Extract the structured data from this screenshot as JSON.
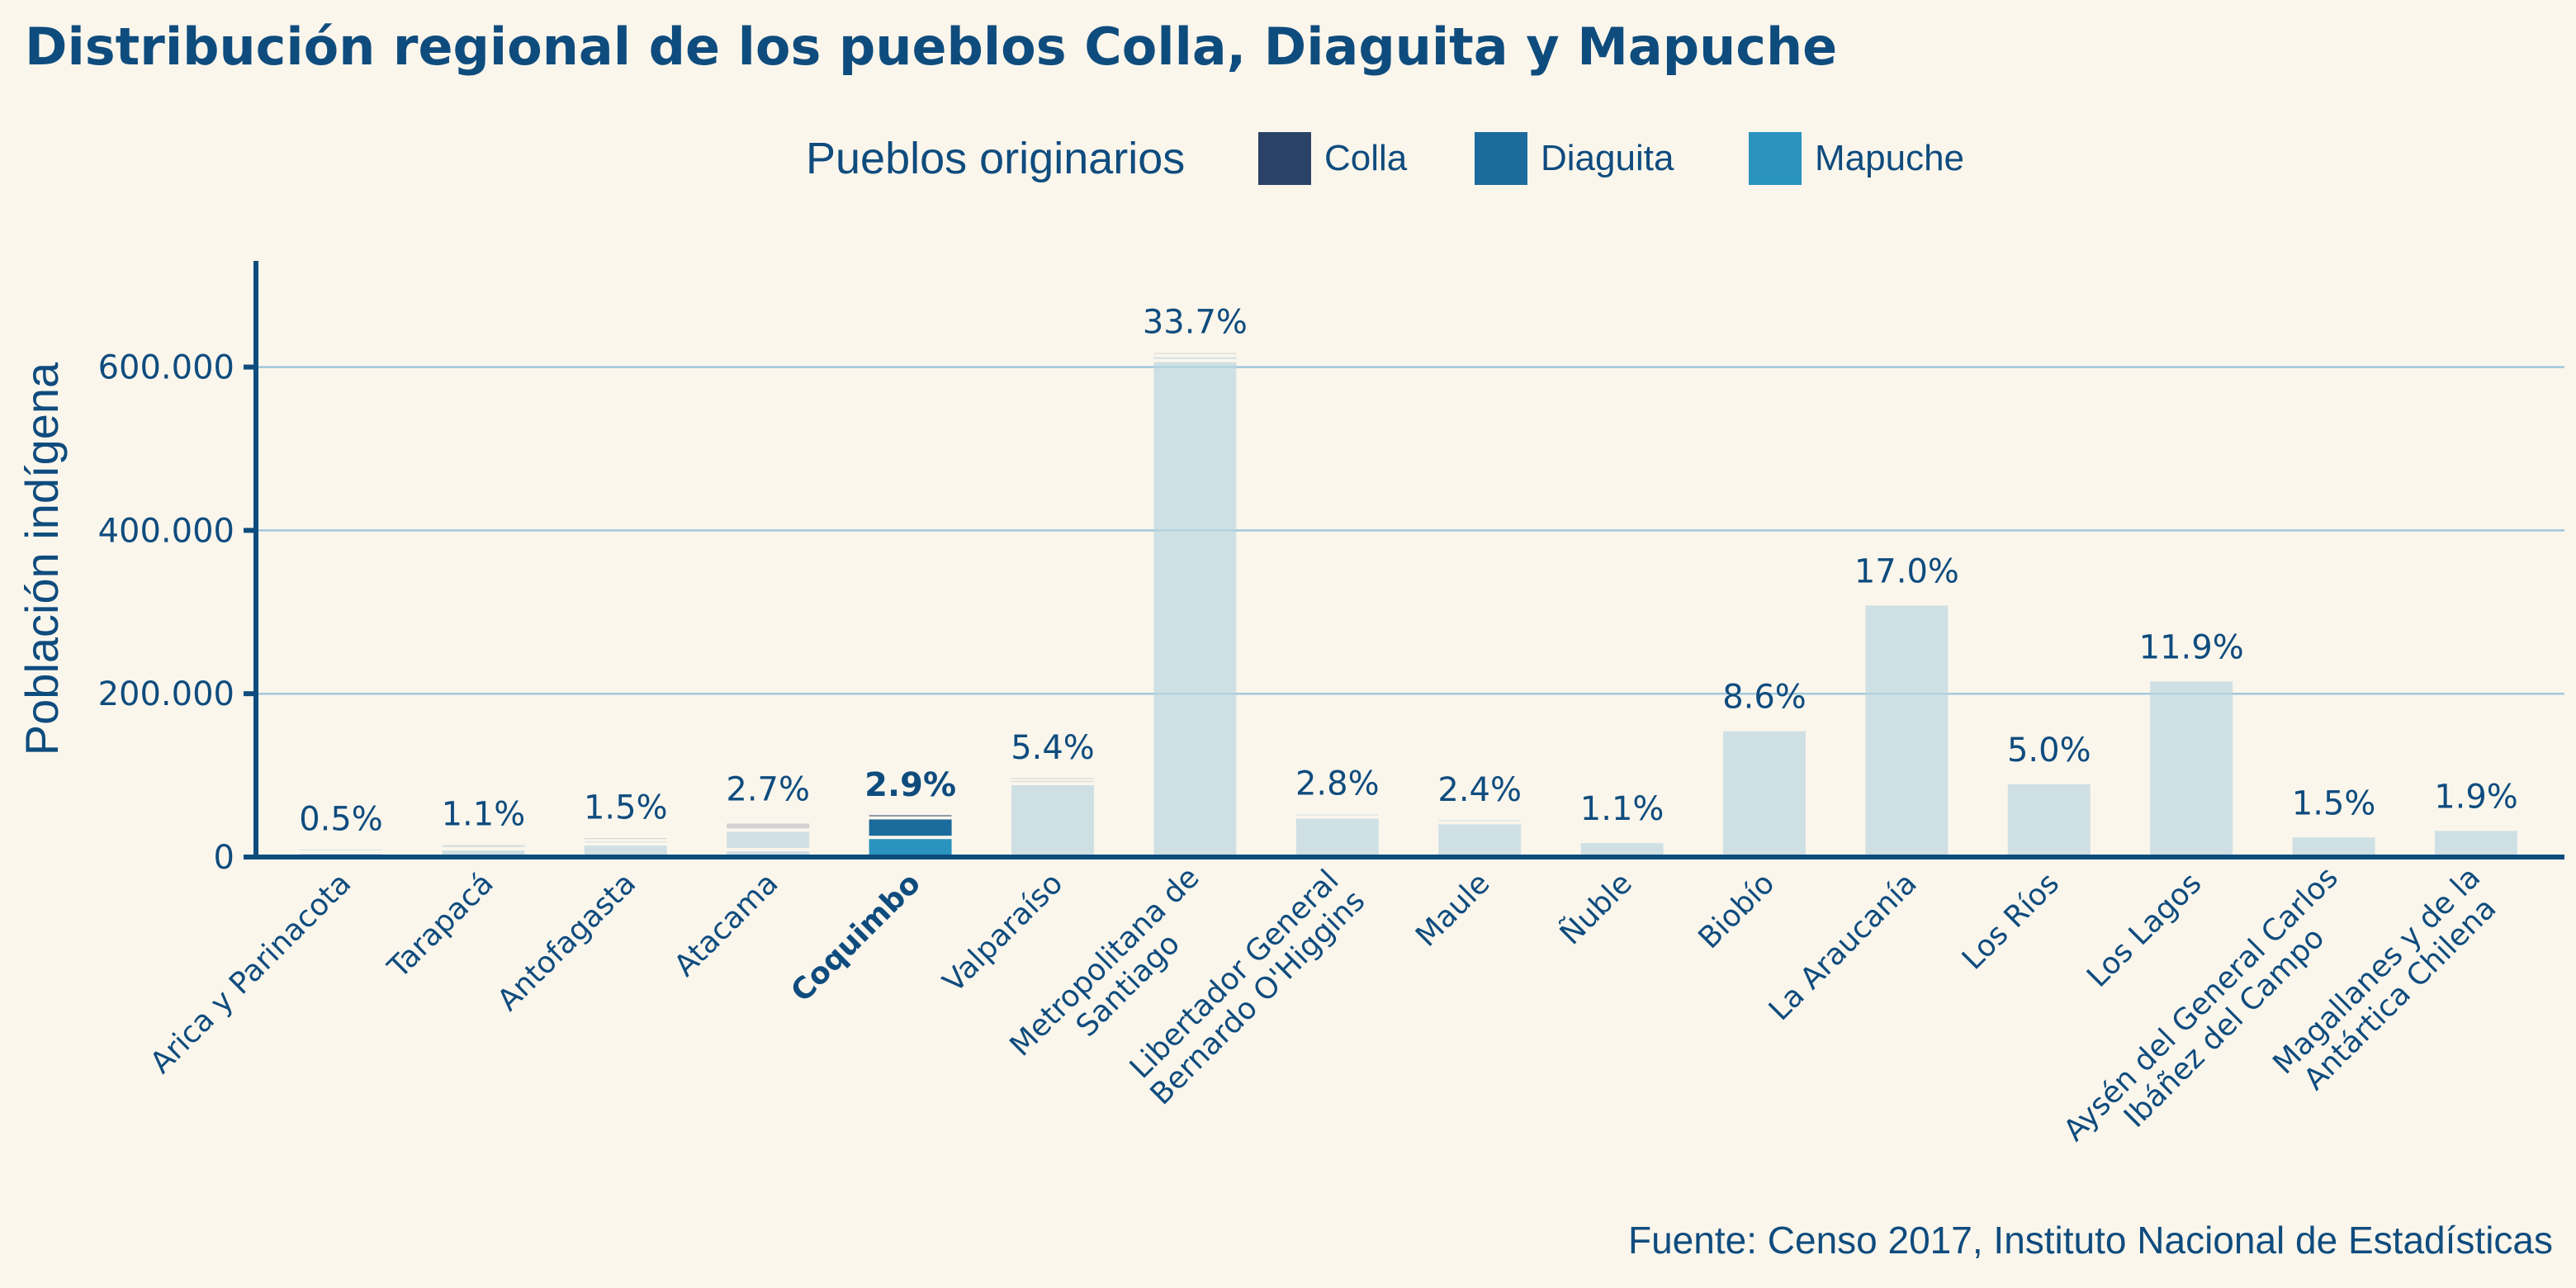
{
  "chart_data": {
    "type": "bar",
    "stacked": true,
    "title": "Distribución regional de los pueblos Colla, Diaguita y Mapuche",
    "legend": {
      "title": "Pueblos originarios",
      "placement": "top-center",
      "entries": [
        {
          "name": "Colla",
          "color": "#2A4266"
        },
        {
          "name": "Diaguita",
          "color": "#1B6B9C"
        },
        {
          "name": "Mapuche",
          "color": "#2A93BE"
        }
      ]
    },
    "xlabel": "",
    "ylabel": "Población indígena",
    "ylim": [
      0,
      730000
    ],
    "yticks": [
      0,
      200000,
      400000,
      600000
    ],
    "ytick_labels": [
      "0",
      "200.000",
      "400.000",
      "600.000"
    ],
    "grid": "horizontal",
    "highlight": "Coquimbo",
    "muted_colors": {
      "Colla": "#D3D3D3",
      "Diaguita": "#CFE0E4",
      "Mapuche": "#CFE0E4"
    },
    "categories": [
      [
        "Arica y Parinacota"
      ],
      [
        "Tarapacá"
      ],
      [
        "Antofagasta"
      ],
      [
        "Atacama"
      ],
      [
        "Coquimbo"
      ],
      [
        "Valparaíso"
      ],
      [
        "Metropolitana de",
        "Santiago"
      ],
      [
        "Libertador General",
        "Bernardo O'Higgins"
      ],
      [
        "Maule"
      ],
      [
        "Ñuble"
      ],
      [
        "Biobío"
      ],
      [
        "La Araucanía"
      ],
      [
        "Los Ríos"
      ],
      [
        "Los Lagos"
      ],
      [
        "Aysén del General Carlos",
        "Ibáñez del Campo"
      ],
      [
        "Magallanes y de la",
        "Antártica Chilena"
      ]
    ],
    "series": [
      {
        "name": "Mapuche",
        "values": [
          4000,
          8000,
          14000,
          7000,
          22000,
          88000,
          606000,
          47000,
          40000,
          17000,
          154000,
          308000,
          89000,
          215000,
          24000,
          32000
        ]
      },
      {
        "name": "Diaguita",
        "values": [
          500,
          1500,
          4000,
          24000,
          24000,
          3500,
          6000,
          1000,
          500,
          0,
          0,
          0,
          0,
          0,
          0,
          0
        ]
      },
      {
        "name": "Colla",
        "values": [
          0,
          1000,
          500,
          10000,
          500,
          500,
          1000,
          0,
          0,
          0,
          0,
          0,
          0,
          0,
          0,
          0
        ]
      }
    ],
    "data_labels": [
      "0.5%",
      "1.1%",
      "1.5%",
      "2.7%",
      "2.9%",
      "5.4%",
      "33.7%",
      "2.8%",
      "2.4%",
      "1.1%",
      "8.6%",
      "17.0%",
      "5.0%",
      "11.9%",
      "1.5%",
      "1.9%"
    ],
    "source": "Fuente: Censo 2017, Instituto Nacional de Estadísticas"
  }
}
